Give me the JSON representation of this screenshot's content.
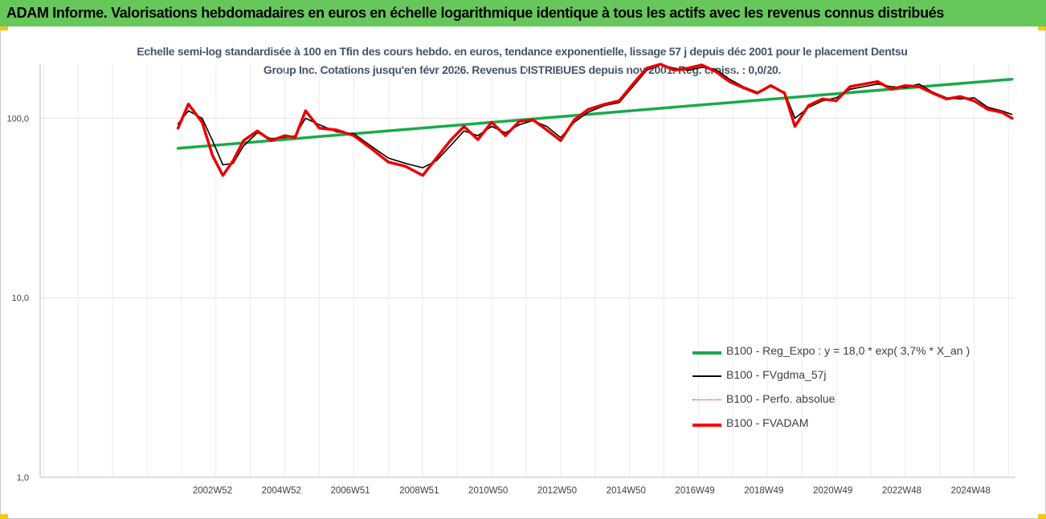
{
  "banner": {
    "title": "ADAM Informe. Valorisations hebdomadaires en euros en échelle logarithmique identique à tous les actifs avec les revenus connus distribués"
  },
  "chart_data": {
    "type": "line",
    "title": "Echelle semi-log standardisée à 100 en Tfin des cours hebdo. en euros, tendance exponentielle, lissage 57 j depuis déc 2001 pour le placement Dentsu Group Inc. Cotations jusqu'en févr 2026. Revenus DISTRIBUES depuis nov 2001. Reg. croiss. : 0,0/20.",
    "y_scale": "log",
    "ylim": [
      1,
      200
    ],
    "y_ticks": [
      "1,0",
      "10,0",
      "100,0"
    ],
    "x_ticks": [
      "2002W52",
      "2004W52",
      "2006W51",
      "2008W51",
      "2010W50",
      "2012W50",
      "2014W50",
      "2016W49",
      "2018W49",
      "2020W49",
      "2022W48",
      "2024W48"
    ],
    "x_range": [
      1997.9,
      2026.2
    ],
    "grid": true,
    "legend_position": "bottom-right",
    "series": [
      {
        "name": "B100 - Reg_Expo : y = 18,0 * exp( 3,7% *  X_an )",
        "color": "#1aaa4a",
        "style": "solid-thick",
        "x": [
          2001.9,
          2026.1
        ],
        "y": [
          68,
          165
        ]
      },
      {
        "name": "B100 - FVgdma_57j",
        "color": "#000000",
        "style": "solid-thin",
        "x": [
          2001.9,
          2002.2,
          2002.6,
          2002.9,
          2003.2,
          2003.5,
          2003.8,
          2004.2,
          2004.6,
          2005.0,
          2005.3,
          2005.6,
          2006.0,
          2006.5,
          2007.0,
          2007.5,
          2008.0,
          2008.5,
          2009.0,
          2009.4,
          2009.8,
          2010.2,
          2010.6,
          2011.0,
          2011.4,
          2011.8,
          2012.2,
          2012.6,
          2013.0,
          2013.4,
          2013.8,
          2014.3,
          2014.7,
          2015.1,
          2015.5,
          2015.9,
          2016.3,
          2016.7,
          2017.1,
          2017.5,
          2017.9,
          2018.3,
          2018.7,
          2019.1,
          2019.5,
          2019.8,
          2020.2,
          2020.6,
          2021.0,
          2021.4,
          2021.8,
          2022.2,
          2022.6,
          2023.0,
          2023.4,
          2023.8,
          2024.2,
          2024.6,
          2025.0,
          2025.4,
          2025.8,
          2026.1
        ],
        "y": [
          93,
          110,
          100,
          75,
          55,
          56,
          70,
          83,
          77,
          78,
          80,
          100,
          92,
          84,
          82,
          70,
          60,
          56,
          53,
          58,
          70,
          85,
          80,
          90,
          83,
          92,
          97,
          90,
          78,
          95,
          108,
          118,
          122,
          150,
          185,
          198,
          190,
          185,
          192,
          187,
          165,
          150,
          140,
          150,
          140,
          100,
          115,
          125,
          130,
          145,
          150,
          155,
          150,
          148,
          155,
          140,
          130,
          128,
          130,
          115,
          110,
          105
        ]
      },
      {
        "name": "B100 - Perfo. absolue",
        "color": "#c00000",
        "style": "dotted",
        "x": [
          2001.9,
          2002.2,
          2002.6,
          2002.9,
          2003.2,
          2003.5,
          2003.8,
          2004.2,
          2004.6,
          2005.0,
          2005.3,
          2005.6,
          2006.0,
          2006.5,
          2007.0,
          2007.5,
          2008.0,
          2008.5,
          2009.0,
          2009.4,
          2009.8,
          2010.2,
          2010.6,
          2011.0,
          2011.4,
          2011.8,
          2012.2,
          2012.6,
          2013.0,
          2013.4,
          2013.8,
          2014.3,
          2014.7,
          2015.1,
          2015.5,
          2015.9,
          2016.3,
          2016.7,
          2017.1,
          2017.5,
          2017.9,
          2018.3,
          2018.7,
          2019.1,
          2019.5,
          2019.8,
          2020.2,
          2020.6,
          2021.0,
          2021.4,
          2021.8,
          2022.2,
          2022.6,
          2023.0,
          2023.4,
          2023.8,
          2024.2,
          2024.6,
          2025.0,
          2025.4,
          2025.8,
          2026.1
        ],
        "y": [
          88,
          120,
          95,
          62,
          48,
          58,
          75,
          85,
          75,
          80,
          78,
          110,
          88,
          86,
          80,
          68,
          57,
          54,
          48,
          60,
          75,
          90,
          76,
          95,
          80,
          96,
          98,
          86,
          75,
          98,
          112,
          120,
          125,
          155,
          190,
          200,
          185,
          190,
          198,
          182,
          160,
          148,
          138,
          152,
          138,
          90,
          118,
          128,
          125,
          150,
          155,
          160,
          145,
          152,
          150,
          138,
          128,
          132,
          125,
          112,
          108,
          100
        ]
      },
      {
        "name": "B100 - FVADAM",
        "color": "#ff0000",
        "style": "solid-thick",
        "x": [
          2001.9,
          2002.2,
          2002.6,
          2002.9,
          2003.2,
          2003.5,
          2003.8,
          2004.2,
          2004.6,
          2005.0,
          2005.3,
          2005.6,
          2006.0,
          2006.5,
          2007.0,
          2007.5,
          2008.0,
          2008.5,
          2009.0,
          2009.4,
          2009.8,
          2010.2,
          2010.6,
          2011.0,
          2011.4,
          2011.8,
          2012.2,
          2012.6,
          2013.0,
          2013.4,
          2013.8,
          2014.3,
          2014.7,
          2015.1,
          2015.5,
          2015.9,
          2016.3,
          2016.7,
          2017.1,
          2017.5,
          2017.9,
          2018.3,
          2018.7,
          2019.1,
          2019.5,
          2019.8,
          2020.2,
          2020.6,
          2021.0,
          2021.4,
          2021.8,
          2022.2,
          2022.6,
          2023.0,
          2023.4,
          2023.8,
          2024.2,
          2024.6,
          2025.0,
          2025.4,
          2025.8,
          2026.1
        ],
        "y": [
          88,
          120,
          95,
          62,
          48,
          58,
          75,
          85,
          75,
          80,
          78,
          110,
          88,
          86,
          80,
          68,
          57,
          54,
          48,
          60,
          75,
          90,
          76,
          95,
          80,
          96,
          98,
          86,
          75,
          98,
          112,
          120,
          125,
          155,
          190,
          200,
          185,
          190,
          198,
          182,
          160,
          148,
          138,
          152,
          138,
          90,
          118,
          128,
          125,
          150,
          155,
          160,
          145,
          152,
          150,
          138,
          128,
          132,
          125,
          112,
          108,
          100
        ]
      }
    ]
  }
}
